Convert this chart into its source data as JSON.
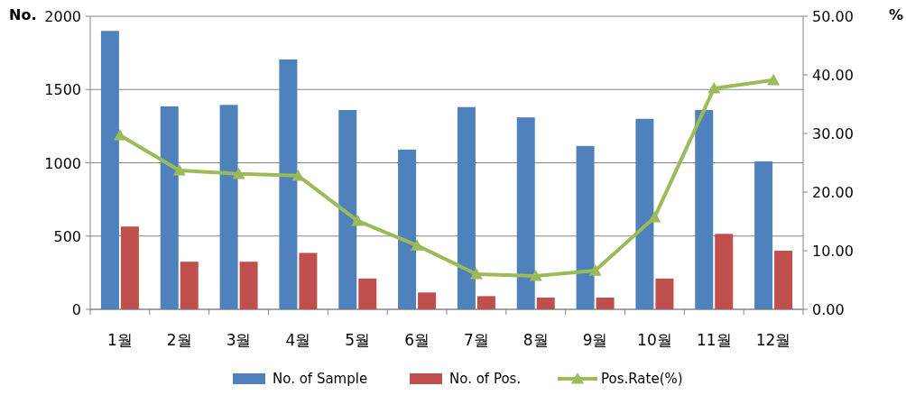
{
  "chart_data": {
    "type": "bar",
    "categories": [
      "1월",
      "2월",
      "3월",
      "4월",
      "5월",
      "6월",
      "7월",
      "8월",
      "9월",
      "10월",
      "11월",
      "12월"
    ],
    "ylabel": "No.",
    "y2label": "%",
    "ylim": [
      0,
      2000
    ],
    "yticks": [
      0,
      500,
      1000,
      1500,
      2000
    ],
    "y2lim": [
      0,
      50
    ],
    "y2ticks": [
      {
        "value": 0,
        "label": "0.00"
      },
      {
        "value": 10,
        "label": "10.00"
      },
      {
        "value": 20,
        "label": "20.00"
      },
      {
        "value": 30,
        "label": "30.00"
      },
      {
        "value": 40,
        "label": "40.00"
      },
      {
        "value": 50,
        "label": "50.00"
      }
    ],
    "grid": "y",
    "legend": "bottom",
    "series": [
      {
        "name": "No. of Sample",
        "type": "bar",
        "color": "#4f81bd",
        "values": [
          1900,
          1385,
          1395,
          1705,
          1360,
          1090,
          1380,
          1310,
          1115,
          1300,
          1360,
          1010
        ]
      },
      {
        "name": "No. of Pos.",
        "type": "bar",
        "color": "#c0504d",
        "values": [
          565,
          325,
          325,
          385,
          210,
          115,
          90,
          80,
          80,
          210,
          515,
          400
        ]
      },
      {
        "name": "Pos.Rate(%)",
        "type": "line",
        "axis": "y2",
        "marker": "triangle",
        "color": "#9bbb59",
        "values": [
          29.7,
          23.7,
          23.1,
          22.8,
          15.1,
          10.9,
          6.0,
          5.7,
          6.6,
          15.7,
          37.7,
          39.1
        ]
      }
    ]
  }
}
